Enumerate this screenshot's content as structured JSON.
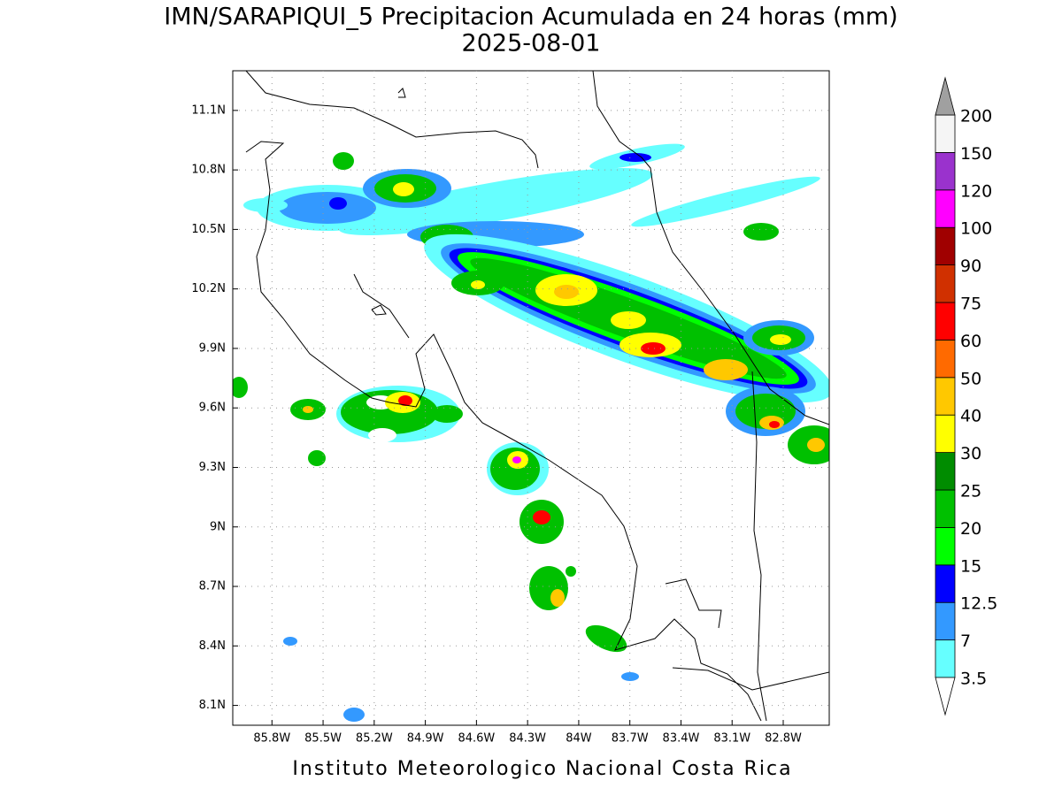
{
  "title": "IMN/SARAPIQUI_5 Precipitacion Acumulada en 24 horas (mm)",
  "subtitle": "2025-08-01",
  "footer": "Instituto Meteorologico Nacional Costa Rica",
  "map": {
    "xlim": [
      -86.03,
      -82.53
    ],
    "ylim": [
      8.0,
      11.3
    ],
    "xticks": [
      {
        "value": -85.8,
        "label": "85.8W"
      },
      {
        "value": -85.5,
        "label": "85.5W"
      },
      {
        "value": -85.2,
        "label": "85.2W"
      },
      {
        "value": -84.9,
        "label": "84.9W"
      },
      {
        "value": -84.6,
        "label": "84.6W"
      },
      {
        "value": -84.3,
        "label": "84.3W"
      },
      {
        "value": -84,
        "label": "84W"
      },
      {
        "value": -83.7,
        "label": "83.7W"
      },
      {
        "value": -83.4,
        "label": "83.4W"
      },
      {
        "value": -83.1,
        "label": "83.1W"
      },
      {
        "value": -82.8,
        "label": "82.8W"
      }
    ],
    "yticks": [
      {
        "value": 8.1,
        "label": "8.1N"
      },
      {
        "value": 8.4,
        "label": "8.4N"
      },
      {
        "value": 8.7,
        "label": "8.7N"
      },
      {
        "value": 9,
        "label": "9N"
      },
      {
        "value": 9.3,
        "label": "9.3N"
      },
      {
        "value": 9.6,
        "label": "9.6N"
      },
      {
        "value": 9.9,
        "label": "9.9N"
      },
      {
        "value": 10.2,
        "label": "10.2N"
      },
      {
        "value": 10.5,
        "label": "10.5N"
      },
      {
        "value": 10.8,
        "label": "10.8N"
      },
      {
        "value": 11.1,
        "label": "11.1N"
      }
    ],
    "grid": true
  },
  "colorbar": {
    "levels": [
      3.5,
      7,
      12.5,
      15,
      20,
      25,
      30,
      40,
      50,
      60,
      75,
      90,
      100,
      120,
      150,
      200
    ],
    "colors": [
      "#66ffff",
      "#3399ff",
      "#0000ff",
      "#00ff00",
      "#00c000",
      "#008c00",
      "#ffff00",
      "#ffc800",
      "#ff6a00",
      "#ff0000",
      "#d03000",
      "#a00000",
      "#ff00ff",
      "#9a32cd",
      "#f5f5f5"
    ],
    "under_color": "#ffffff",
    "over_color": "#a0a0a0"
  }
}
